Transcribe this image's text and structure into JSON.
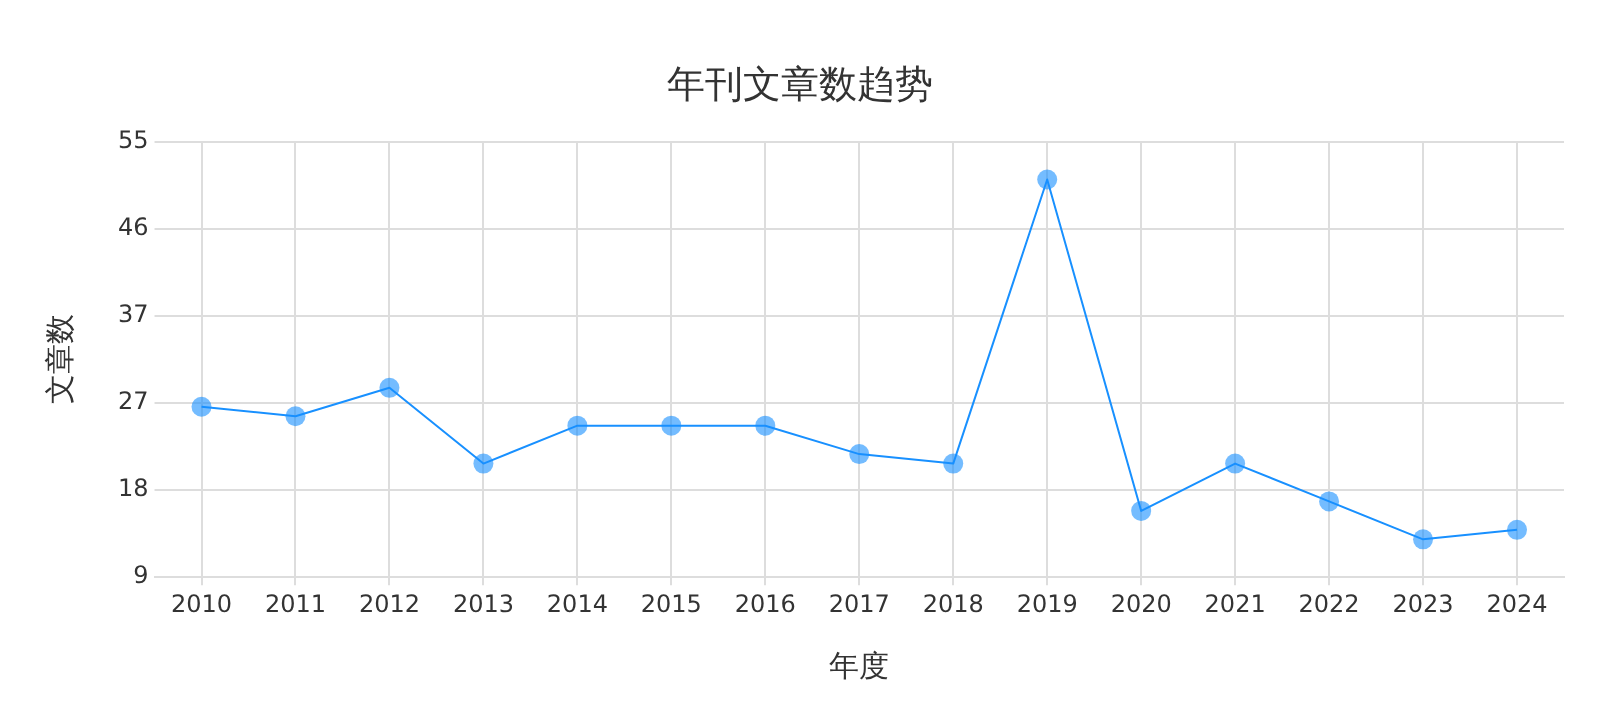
{
  "chart_data": {
    "type": "line",
    "title": "年刊文章数趋势",
    "xlabel": "年度",
    "ylabel": "文章数",
    "categories": [
      "2010",
      "2011",
      "2012",
      "2013",
      "2014",
      "2015",
      "2016",
      "2017",
      "2018",
      "2019",
      "2020",
      "2021",
      "2022",
      "2023",
      "2024"
    ],
    "series": [
      {
        "color": "#1890ff",
        "values": [
          27,
          26,
          29,
          21,
          25,
          25,
          25,
          22,
          21,
          51,
          16,
          21,
          17,
          13,
          14
        ]
      }
    ],
    "ylim": [
      9,
      55
    ],
    "yticks": [
      9,
      {
        "value": 18.2,
        "label": "18"
      },
      {
        "value": 27.4,
        "label": "27"
      },
      {
        "value": 36.6,
        "label": "37"
      },
      {
        "value": 45.8,
        "label": "46"
      },
      55
    ],
    "grid": true,
    "marker": "circle",
    "line_style": "solid",
    "legend": false
  }
}
